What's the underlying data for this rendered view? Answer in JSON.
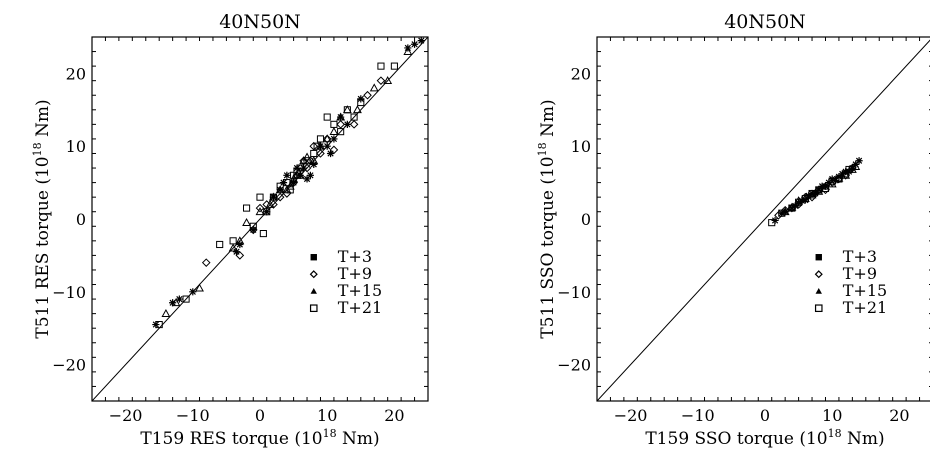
{
  "chart_data": [
    {
      "type": "scatter",
      "title": "40N50N",
      "xlabel": "T159 RES torque (10",
      "xlabel_exp": "18",
      "xlabel_end": " Nm)",
      "ylabel": "T511 RES torque (10",
      "ylabel_exp": "18",
      "ylabel_end": " Nm)",
      "xlim": [
        -25,
        25
      ],
      "ylim": [
        -25,
        25
      ],
      "xticks": [
        "−20",
        "−10",
        "0",
        "10",
        "20"
      ],
      "yticks": [
        "−20",
        "−10",
        "0",
        "10",
        "20"
      ],
      "legend_position": "lower-right",
      "one_to_one_line": true,
      "series": [
        {
          "name": "T+3",
          "marker": "star",
          "x": [
            -15.5,
            -13,
            -12,
            -10,
            -3.5,
            -3,
            -1,
            1,
            2,
            3,
            3.5,
            4,
            5,
            5.5,
            6,
            6.5,
            7,
            7.5,
            8,
            9,
            10,
            10.5,
            11,
            12,
            13,
            15,
            22,
            23,
            24
          ],
          "y": [
            -14.5,
            -11.5,
            -11,
            -10,
            -4.5,
            -3.5,
            -1.5,
            1,
            3,
            4,
            5,
            6,
            5,
            7,
            6,
            7,
            5.5,
            6,
            7.5,
            10,
            10,
            9,
            11,
            14,
            13,
            16.5,
            23.5,
            24,
            24.5
          ]
        },
        {
          "name": "T+9",
          "marker": "diamond",
          "x": [
            -8,
            -3,
            -1,
            0,
            1,
            2,
            3,
            4,
            5,
            5.5,
            6,
            6.5,
            7,
            7.5,
            8,
            9,
            10,
            11,
            12,
            14,
            16,
            18
          ],
          "y": [
            -6,
            -5,
            -1.5,
            1.5,
            2,
            2,
            3,
            3.5,
            5,
            6,
            6.5,
            8,
            7,
            8,
            10,
            9,
            11,
            9.5,
            13,
            13,
            17,
            19
          ]
        },
        {
          "name": "T+15",
          "marker": "triangle",
          "x": [
            -14,
            -12.5,
            -9,
            -4,
            -3,
            -2,
            0,
            1.5,
            2,
            3,
            4,
            4.5,
            5,
            5.5,
            6,
            6.5,
            7,
            8,
            9,
            10,
            11,
            12,
            13,
            14.5,
            17,
            19,
            22
          ],
          "y": [
            -13,
            -11.5,
            -9.5,
            -4,
            -3,
            -0.5,
            1,
            2,
            3,
            4,
            4,
            4.5,
            5.5,
            6,
            6,
            8,
            8.5,
            8,
            10,
            11,
            12,
            14,
            15,
            15,
            18,
            19,
            23
          ]
        },
        {
          "name": "T+21",
          "marker": "square",
          "x": [
            -15,
            -11,
            -6,
            -4,
            -2,
            -1,
            0,
            0.5,
            1,
            2,
            3,
            4,
            4.5,
            5,
            5.5,
            6,
            7,
            8,
            8.5,
            9,
            10,
            11,
            12,
            13,
            14,
            15,
            18,
            20
          ],
          "y": [
            -14.5,
            -11,
            -3.5,
            -3,
            1.5,
            -1,
            3,
            -2,
            1,
            3,
            4.5,
            5,
            4,
            6,
            6.5,
            7,
            8,
            9,
            10,
            11,
            14,
            13,
            12,
            15,
            14,
            16,
            21,
            21
          ]
        }
      ]
    },
    {
      "type": "scatter",
      "title": "40N50N",
      "xlabel": "T159 SSO torque (10",
      "xlabel_exp": "18",
      "xlabel_end": " Nm)",
      "ylabel": "T511 SSO torque (10",
      "ylabel_exp": "18",
      "ylabel_end": " Nm)",
      "xlim": [
        -25,
        25
      ],
      "ylim": [
        -25,
        25
      ],
      "xticks": [
        "−20",
        "−10",
        "0",
        "10",
        "20"
      ],
      "yticks": [
        "−20",
        "−10",
        "0",
        "10",
        "20"
      ],
      "legend_position": "lower-right",
      "one_to_one_line": true,
      "series": [
        {
          "name": "T+3",
          "marker": "star",
          "x": [
            1.5,
            2.5,
            3,
            4,
            4.5,
            5,
            5.5,
            6,
            6.5,
            7,
            7.5,
            8,
            8.5,
            9,
            9.5,
            10,
            10.5,
            11,
            11.5,
            12,
            12.5,
            13,
            13.5,
            14
          ],
          "y": [
            -0.2,
            0.8,
            1,
            1.5,
            1.8,
            2.2,
            2.5,
            2.6,
            3.2,
            3.5,
            3.5,
            4,
            4.5,
            4.5,
            5,
            5.5,
            5.3,
            5.8,
            6.2,
            6.5,
            6.5,
            7,
            7.5,
            8
          ]
        },
        {
          "name": "T+9",
          "marker": "diamond",
          "x": [
            2,
            3,
            4,
            5,
            6,
            7,
            7.5,
            8,
            9,
            10,
            11,
            12,
            13
          ],
          "y": [
            0.5,
            1.2,
            1.5,
            2,
            3,
            3,
            3.5,
            4,
            4,
            5,
            5.5,
            6,
            7
          ]
        },
        {
          "name": "T+15",
          "marker": "triangle",
          "x": [
            3,
            4,
            5,
            6,
            7,
            8,
            9,
            10,
            11,
            12,
            13,
            13.5
          ],
          "y": [
            1,
            1.6,
            2.5,
            2.8,
            3.3,
            3.8,
            4.5,
            4.8,
            5.6,
            6,
            6.8,
            7.2
          ]
        },
        {
          "name": "T+21",
          "marker": "square",
          "x": [
            1,
            2.5,
            4,
            5,
            6,
            7,
            8,
            9,
            10,
            11,
            12,
            12.5
          ],
          "y": [
            -0.5,
            0.8,
            1.5,
            2.3,
            2.8,
            3.5,
            4,
            4.2,
            5.2,
            5.5,
            6.2,
            6.8
          ]
        }
      ]
    }
  ]
}
